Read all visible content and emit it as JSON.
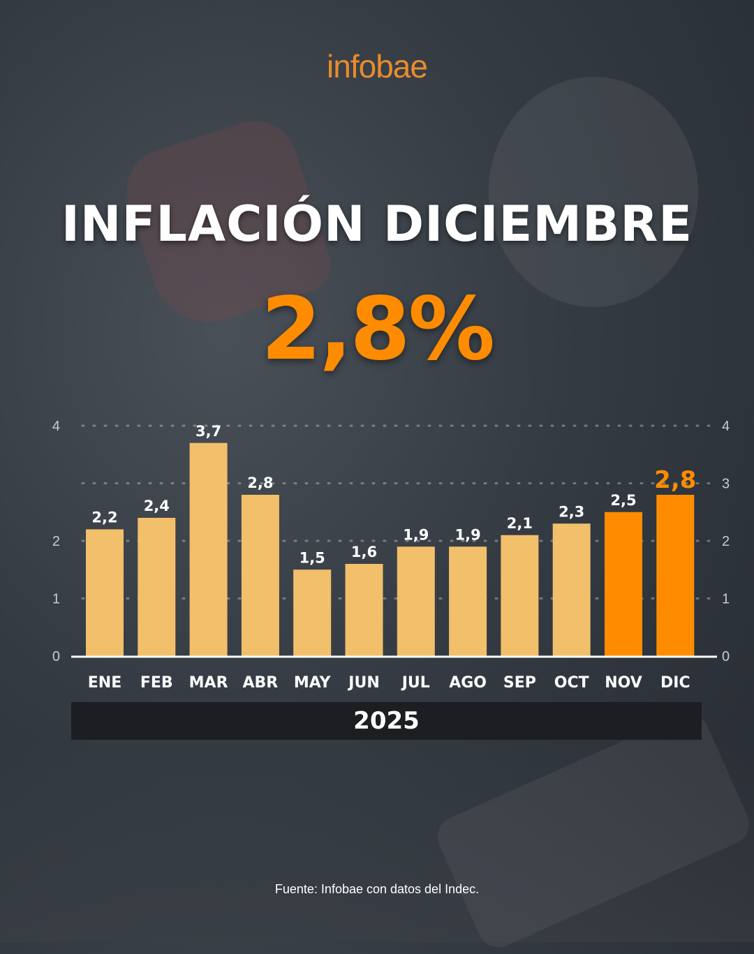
{
  "brand": {
    "logo_text": "infobae"
  },
  "header": {
    "title": "INFLACIÓN DICIEMBRE",
    "headline_value": "2,8%"
  },
  "footer": {
    "year": "2025",
    "source": "Fuente: Infobae con datos del Indec."
  },
  "colors": {
    "bar_default": "#f2bf6b",
    "bar_highlight": "#ff8c00",
    "headline": "#ff8c00",
    "logo": "#e88c2c"
  },
  "chart_data": {
    "type": "bar",
    "categories": [
      "ENE",
      "FEB",
      "MAR",
      "ABR",
      "MAY",
      "JUN",
      "JUL",
      "AGO",
      "SEP",
      "OCT",
      "NOV",
      "DIC"
    ],
    "values": [
      2.2,
      2.4,
      3.7,
      2.8,
      1.5,
      1.6,
      1.9,
      1.9,
      2.1,
      2.3,
      2.5,
      2.8
    ],
    "value_labels": [
      "2,2",
      "2,4",
      "3,7",
      "2,8",
      "1,5",
      "1,6",
      "1,9",
      "1,9",
      "2,1",
      "2,3",
      "2,5",
      "2,8"
    ],
    "highlight": [
      "NOV",
      "DIC"
    ],
    "emphasized": "DIC",
    "ylim": [
      0,
      4
    ],
    "yticks_left": [
      0,
      1,
      2,
      4
    ],
    "yticks_right": [
      0,
      1,
      2,
      3,
      4
    ],
    "gridlines": [
      1,
      2,
      3,
      4
    ],
    "grid": "dotted",
    "title": "",
    "xlabel": "",
    "ylabel": ""
  }
}
